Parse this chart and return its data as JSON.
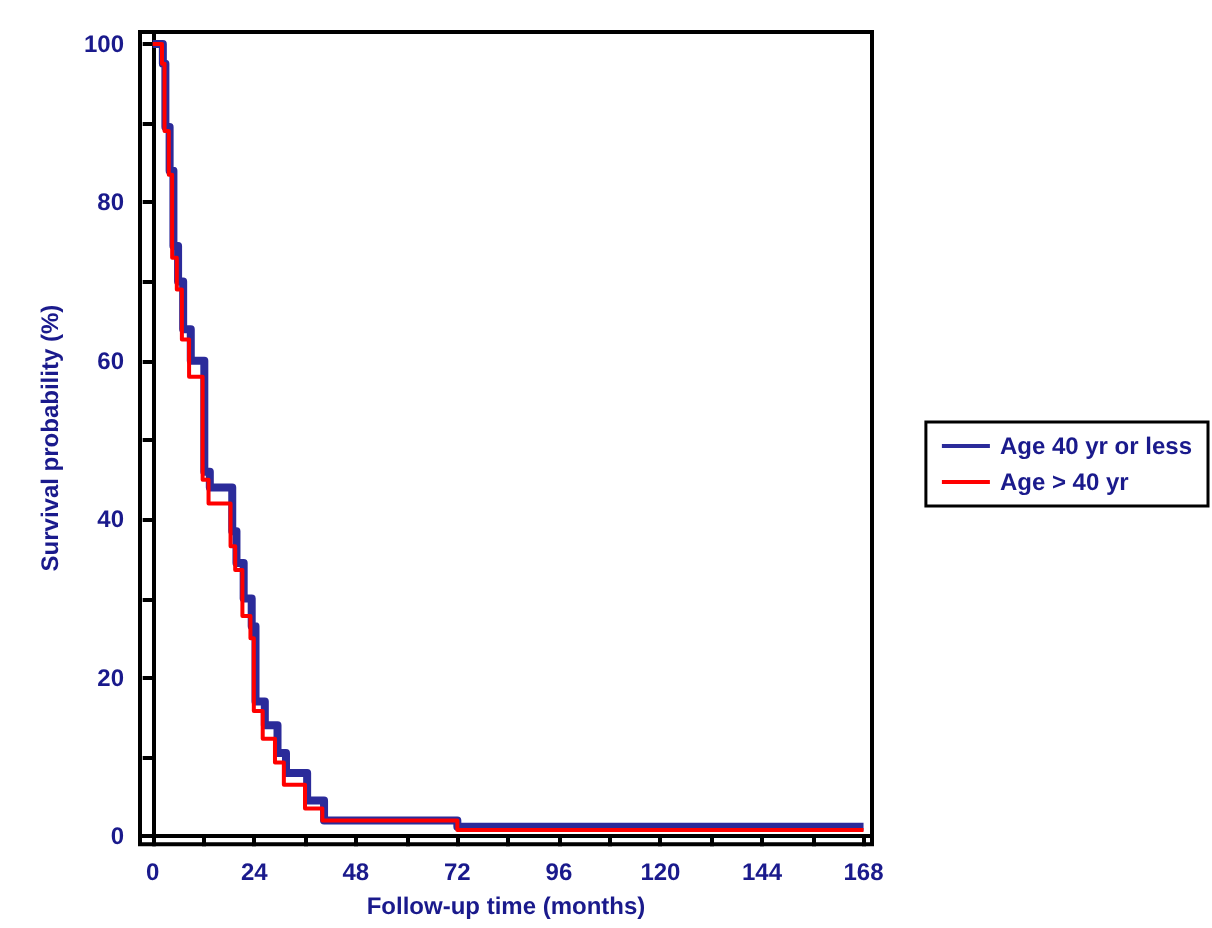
{
  "chart_data": {
    "type": "step",
    "xlabel": "Follow-up time (months)",
    "ylabel": "Survival probability (%)",
    "xlim": [
      -3,
      170
    ],
    "ylim": [
      -1,
      101.5
    ],
    "xticks": [
      0,
      {
        "value": 12,
        "label": null
      },
      24,
      {
        "value": 36,
        "label": null
      },
      48,
      {
        "value": 60,
        "label": null
      },
      72,
      {
        "value": 84,
        "label": null
      },
      96,
      {
        "value": 108,
        "label": null
      },
      120,
      {
        "value": 132,
        "label": null
      },
      144,
      {
        "value": 156,
        "label": null
      },
      168
    ],
    "yticks": [
      0,
      {
        "value": 10,
        "label": null
      },
      20,
      {
        "value": 30,
        "label": null
      },
      40,
      {
        "value": 50,
        "label": null
      },
      60,
      {
        "value": 70,
        "label": null
      },
      80,
      {
        "value": 90,
        "label": null
      },
      100
    ],
    "legend": "right",
    "series": [
      {
        "name": "Age 40 yr or less",
        "color": "#2b2b9a",
        "x": [
          0,
          2.4,
          3,
          4,
          4.9,
          6,
          7.2,
          9,
          12.2,
          13.5,
          18.8,
          19.8,
          21.5,
          23.4,
          24.3,
          26.5,
          29.5,
          31.5,
          36.5,
          40.5,
          72,
          168
        ],
        "values": [
          100,
          97.5,
          89.5,
          84,
          74.5,
          70,
          64,
          60,
          46,
          44,
          38.5,
          34.5,
          30,
          26.5,
          17,
          14,
          10.5,
          8,
          4.5,
          2,
          1.2,
          1.2
        ]
      },
      {
        "name": "Age > 40 yr",
        "color": "#ff0000",
        "x": [
          0,
          2.2,
          2.8,
          3.8,
          4.6,
          5.7,
          6.9,
          8.6,
          11.8,
          13.2,
          18.4,
          19.5,
          21.2,
          23.1,
          23.9,
          26,
          28.9,
          31,
          36,
          40.1,
          72,
          168
        ],
        "values": [
          100,
          97.5,
          89,
          83.5,
          73,
          69,
          62.7,
          58,
          45,
          42,
          36.6,
          33.6,
          27.8,
          25,
          15.8,
          12.3,
          9.3,
          6.5,
          3.5,
          2,
          0.8,
          0.8
        ]
      }
    ]
  }
}
